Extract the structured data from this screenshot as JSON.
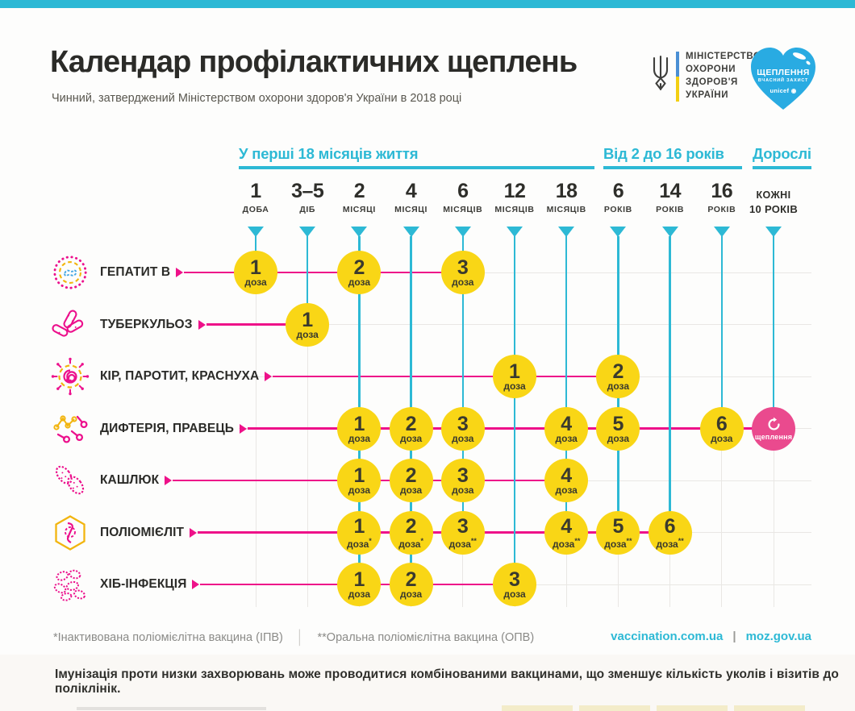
{
  "header": {
    "title": "Календар профілактичних щеплень",
    "subtitle": "Чинний, затверджений Міністерством охорони здоров'я України в 2018 році"
  },
  "logos": {
    "ministry": {
      "line1": "МІНІСТЕРСТВО",
      "line2": "ОХОРОНИ",
      "line3": "ЗДОРОВ'Я",
      "line4": "УКРАЇНИ"
    },
    "heart": {
      "title": "ЩЕПЛЕННЯ",
      "subtitle": "ВЧАСНИЙ ЗАХИСТ",
      "brand": "unicef"
    }
  },
  "age_groups": [
    {
      "label": "У перші 18 місяців життя"
    },
    {
      "label": "Від 2 до 16 років"
    },
    {
      "label": "Дорослі"
    }
  ],
  "columns": [
    {
      "value": "1",
      "unit": "ДОБА"
    },
    {
      "value": "3–5",
      "unit": "ДІБ"
    },
    {
      "value": "2",
      "unit": "МІСЯЦІ"
    },
    {
      "value": "4",
      "unit": "МІСЯЦІ"
    },
    {
      "value": "6",
      "unit": "МІСЯЦІВ"
    },
    {
      "value": "12",
      "unit": "МІСЯЦІВ"
    },
    {
      "value": "18",
      "unit": "МІСЯЦІВ"
    },
    {
      "value": "6",
      "unit": "РОКІВ"
    },
    {
      "value": "14",
      "unit": "РОКІВ"
    },
    {
      "value": "16",
      "unit": "РОКІВ"
    },
    {
      "value": "КОЖНІ",
      "unit": "10 РОКІВ",
      "style": "text"
    }
  ],
  "dose_word": "доза",
  "rows": [
    {
      "label": "ГЕПАТИТ В",
      "icon": "hepatitis-b-virus-icon",
      "doses": [
        {
          "col": 0,
          "n": "1"
        },
        {
          "col": 2,
          "n": "2"
        },
        {
          "col": 4,
          "n": "3"
        }
      ]
    },
    {
      "label": "ТУБЕРКУЛЬОЗ",
      "icon": "tuberculosis-bacteria-icon",
      "doses": [
        {
          "col": 1,
          "n": "1"
        }
      ]
    },
    {
      "label": "КІР, ПАРОТИТ, КРАСНУХА",
      "icon": "measles-virus-icon",
      "doses": [
        {
          "col": 5,
          "n": "1"
        },
        {
          "col": 7,
          "n": "2"
        }
      ]
    },
    {
      "label": "ДИФТЕРІЯ, ПРАВЕЦЬ",
      "icon": "diphtheria-bacteria-icon",
      "doses": [
        {
          "col": 2,
          "n": "1"
        },
        {
          "col": 3,
          "n": "2"
        },
        {
          "col": 4,
          "n": "3"
        },
        {
          "col": 6,
          "n": "4"
        },
        {
          "col": 7,
          "n": "5"
        },
        {
          "col": 9,
          "n": "6"
        },
        {
          "col": 10,
          "booster": true
        }
      ]
    },
    {
      "label": "КАШЛЮК",
      "icon": "pertussis-bacteria-icon",
      "doses": [
        {
          "col": 2,
          "n": "1"
        },
        {
          "col": 3,
          "n": "2"
        },
        {
          "col": 4,
          "n": "3"
        },
        {
          "col": 6,
          "n": "4"
        }
      ]
    },
    {
      "label": "ПОЛІОМІЄЛІТ",
      "icon": "polio-virus-icon",
      "doses": [
        {
          "col": 2,
          "n": "1",
          "mark": "*"
        },
        {
          "col": 3,
          "n": "2",
          "mark": "*"
        },
        {
          "col": 4,
          "n": "3",
          "mark": "**"
        },
        {
          "col": 6,
          "n": "4",
          "mark": "**"
        },
        {
          "col": 7,
          "n": "5",
          "mark": "**"
        },
        {
          "col": 8,
          "n": "6",
          "mark": "**"
        }
      ]
    },
    {
      "label": "ХІБ-ІНФЕКЦІЯ",
      "icon": "hib-bacteria-icon",
      "doses": [
        {
          "col": 2,
          "n": "1"
        },
        {
          "col": 3,
          "n": "2"
        },
        {
          "col": 5,
          "n": "3"
        }
      ]
    }
  ],
  "booster": {
    "label": "щеплення"
  },
  "footnotes": {
    "ipv": "*Інактивована поліомієлітна вакцина (ІПВ)",
    "opv": "**Оральна поліомієлітна вакцина (ОПВ)"
  },
  "links": {
    "site1": "vaccination.com.ua",
    "divider": "|",
    "site2": "moz.gov.ua"
  },
  "bottom_note": "Імунізація проти низки захворювань може проводитися комбінованими вакцинами, що зменшує кількість уколів і візитів до поліклінік.",
  "colors": {
    "cyan": "#2db9d5",
    "pink": "#ee1189",
    "booster_pink": "#ea4a8e",
    "yellow": "#f9d616",
    "heart_blue": "#29abe2",
    "text_dark": "#2b2b28"
  },
  "chart_data": {
    "type": "table",
    "title": "Календар профілактичних щеплень",
    "x_categories": [
      "1 доба",
      "3–5 діб",
      "2 місяці",
      "4 місяці",
      "6 місяців",
      "12 місяців",
      "18 місяців",
      "6 років",
      "14 років",
      "16 років",
      "кожні 10 років"
    ],
    "series": [
      {
        "name": "ГЕПАТИТ В",
        "doses_at": {
          "1 доба": 1,
          "2 місяці": 2,
          "6 місяців": 3
        }
      },
      {
        "name": "ТУБЕРКУЛЬОЗ",
        "doses_at": {
          "3–5 діб": 1
        }
      },
      {
        "name": "КІР, ПАРОТИТ, КРАСНУХА",
        "doses_at": {
          "12 місяців": 1,
          "6 років": 2
        }
      },
      {
        "name": "ДИФТЕРІЯ, ПРАВЕЦЬ",
        "doses_at": {
          "2 місяці": 1,
          "4 місяці": 2,
          "6 місяців": 3,
          "18 місяців": 4,
          "6 років": 5,
          "16 років": 6,
          "кожні 10 років": "щеплення"
        }
      },
      {
        "name": "КАШЛЮК",
        "doses_at": {
          "2 місяці": 1,
          "4 місяці": 2,
          "6 місяців": 3,
          "18 місяців": 4
        }
      },
      {
        "name": "ПОЛІОМІЄЛІТ",
        "doses_at": {
          "2 місяці": "1*",
          "4 місяці": "2*",
          "6 місяців": "3**",
          "18 місяців": "4**",
          "6 років": "5**",
          "14 років": "6**"
        }
      },
      {
        "name": "ХІБ-ІНФЕКЦІЯ",
        "doses_at": {
          "2 місяці": 1,
          "4 місяці": 2,
          "12 місяців": 3
        }
      }
    ]
  }
}
